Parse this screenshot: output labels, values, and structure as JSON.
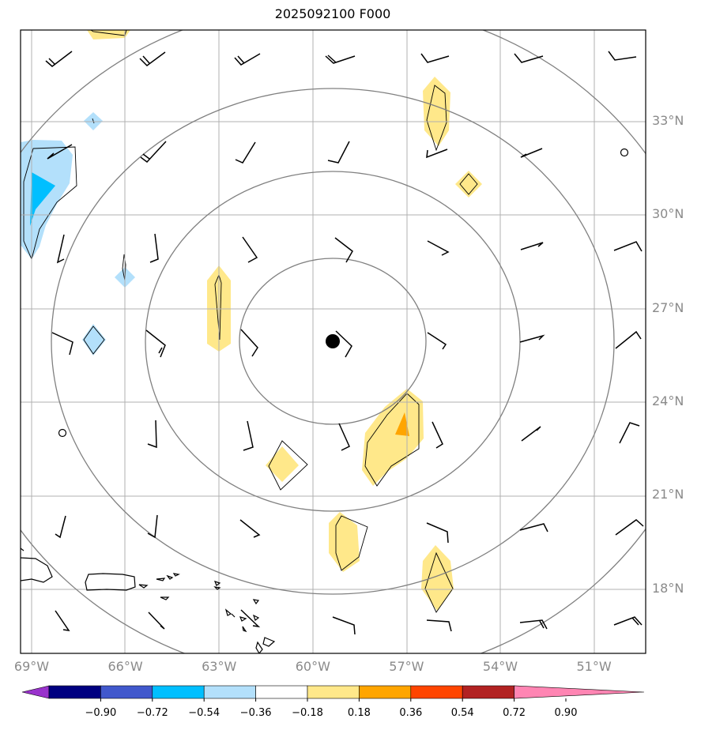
{
  "title": "2025092100 F000",
  "map": {
    "lon_range": [
      -69.3,
      -49.8
    ],
    "lat_range": [
      15.9,
      35.9
    ],
    "lat_labels": [
      {
        "lat": 33,
        "text": "33°N"
      },
      {
        "lat": 30,
        "text": "30°N"
      },
      {
        "lat": 27,
        "text": "27°N"
      },
      {
        "lat": 24,
        "text": "24°N"
      },
      {
        "lat": 21,
        "text": "21°N"
      },
      {
        "lat": 18,
        "text": "18°N"
      }
    ],
    "lon_labels": [
      {
        "lon": -69,
        "text": "69°W"
      },
      {
        "lon": -66,
        "text": "66°W"
      },
      {
        "lon": -63,
        "text": "63°W"
      },
      {
        "lon": -60,
        "text": "60°W"
      },
      {
        "lon": -57,
        "text": "57°W"
      },
      {
        "lon": -54,
        "text": "54°W"
      },
      {
        "lon": -51,
        "text": "51°W"
      }
    ],
    "center_marker": {
      "lon": -59.4,
      "lat": 25.95
    },
    "grid": true,
    "range_rings": "concentric grey circles around center",
    "colors": {
      "grid": "#b0b0b0",
      "rings": "#808080",
      "coast": "#000000",
      "barbs": "#000000"
    }
  },
  "colorbar": {
    "ticks": [
      "−0.90",
      "−0.72",
      "−0.54",
      "−0.36",
      "−0.18",
      "0.18",
      "0.36",
      "0.54",
      "0.72",
      "0.90"
    ],
    "colors": [
      "#9932cc",
      "#000080",
      "#4158cc",
      "#00bfff",
      "#b3e0fb",
      "#ffffff",
      "#ffe88a",
      "#ffa500",
      "#ff4500",
      "#b22222",
      "#ff85b3"
    ]
  }
}
